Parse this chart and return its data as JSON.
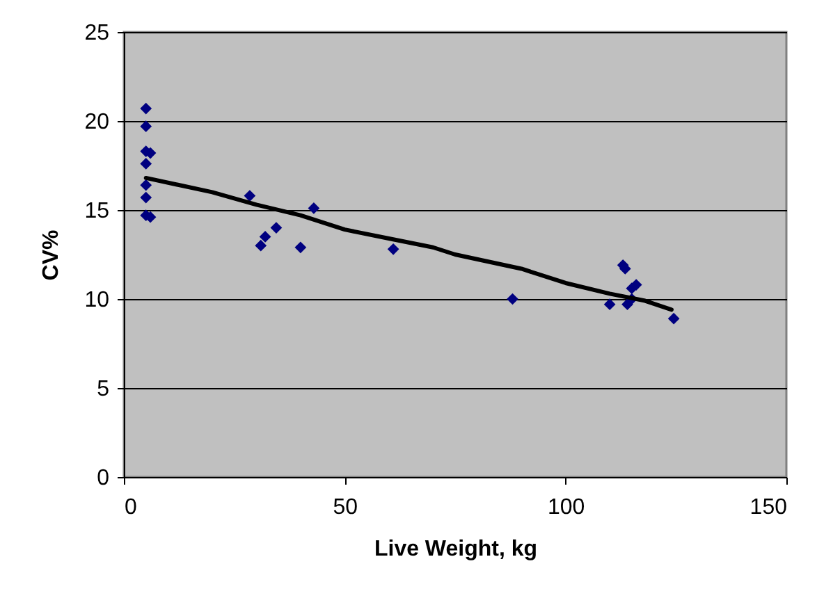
{
  "chart_data": {
    "type": "scatter",
    "xlabel": "Live Weight, kg",
    "ylabel": "CV%",
    "xlim": [
      0,
      150
    ],
    "xticks": [
      0,
      50,
      100,
      150
    ],
    "ylim": [
      0,
      25
    ],
    "yticks": [
      0,
      5,
      10,
      15,
      20,
      25
    ],
    "grid": "y",
    "series": [
      {
        "color": "#000080",
        "marker": "diamond",
        "x": [
          5,
          5,
          5,
          6,
          5,
          5,
          5,
          5,
          6,
          28.5,
          31,
          32,
          34.5,
          40,
          43,
          61,
          88,
          110,
          113,
          113.5,
          114,
          115,
          116,
          115,
          124.5
        ],
        "values": [
          20.7,
          19.7,
          18.3,
          18.2,
          17.6,
          16.4,
          15.7,
          14.7,
          14.6,
          15.8,
          13.0,
          13.5,
          14.0,
          12.9,
          15.1,
          12.8,
          10.0,
          9.7,
          11.9,
          11.7,
          9.7,
          10.6,
          10.8,
          10.0,
          8.9
        ]
      },
      {
        "type": "line",
        "color": "#000000",
        "marker": "none",
        "x": [
          5,
          20,
          30,
          40,
          50,
          60,
          70,
          75,
          90,
          100,
          110,
          118,
          124
        ],
        "values": [
          16.8,
          16.0,
          15.3,
          14.7,
          13.9,
          13.4,
          12.9,
          12.5,
          11.7,
          10.9,
          10.3,
          9.9,
          9.4
        ]
      }
    ]
  }
}
